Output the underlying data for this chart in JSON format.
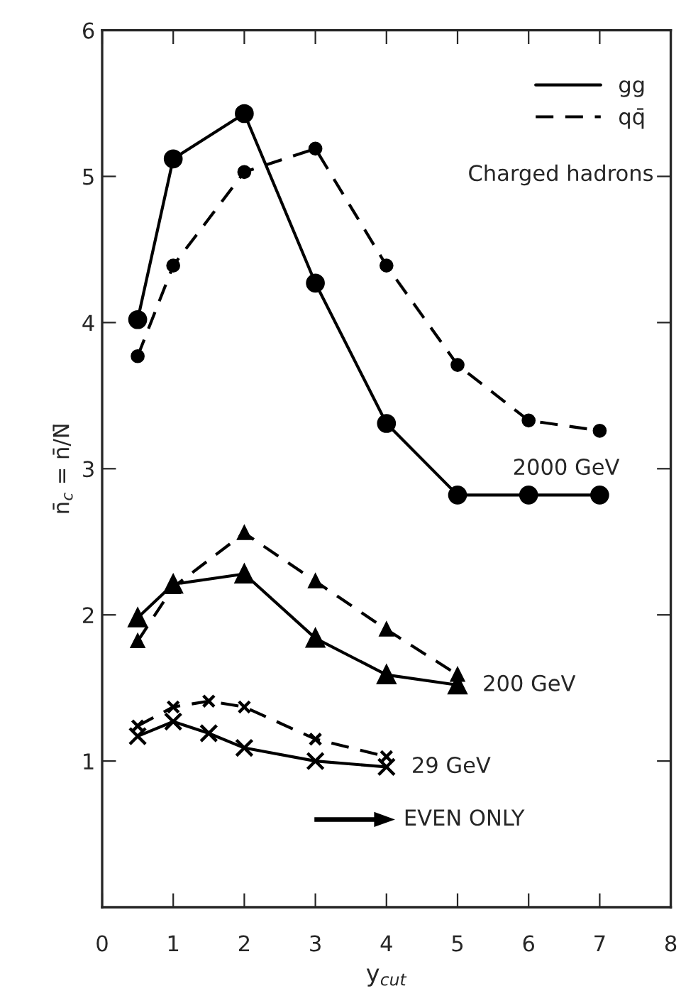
{
  "chart_data": {
    "type": "line",
    "xlabel": "y$_{cut}$",
    "ylabel": "n̄$_{c}$ = n̄/N̄",
    "xlim": [
      0,
      8
    ],
    "ylim": [
      0,
      6
    ],
    "xticks": [
      0,
      1,
      2,
      3,
      4,
      5,
      6,
      7,
      8
    ],
    "yticks": [
      1,
      2,
      3,
      4,
      5,
      6
    ],
    "legend": "top right",
    "grid": false,
    "series": [
      {
        "name": "gg",
        "color": "#000000",
        "line_style": "solid",
        "marker": "circle",
        "x": [
          0.5,
          1,
          2,
          3,
          4,
          5,
          6,
          7
        ],
        "values": [
          4.02,
          5.12,
          5.43,
          4.27,
          3.31,
          2.82,
          2.82,
          2.82
        ]
      },
      {
        "name": "qq̄",
        "color": "#000000",
        "line_style": "dashed",
        "marker": "circle",
        "x": [
          0.5,
          1,
          2,
          3,
          4,
          5,
          6,
          7
        ],
        "values": [
          3.77,
          4.39,
          5.03,
          5.19,
          4.39,
          3.71,
          3.33,
          3.26
        ]
      },
      {
        "color": "#000000",
        "line_style": "solid",
        "marker": "triangle",
        "x": [
          0.5,
          1,
          2,
          3,
          4,
          5
        ],
        "values": [
          1.98,
          2.21,
          2.28,
          1.84,
          1.59,
          1.52
        ]
      },
      {
        "color": "#000000",
        "line_style": "dashed",
        "marker": "triangle",
        "x": [
          0.5,
          1,
          2,
          3,
          4,
          5
        ],
        "values": [
          1.82,
          2.19,
          2.56,
          2.23,
          1.9,
          1.59
        ]
      },
      {
        "color": "#000000",
        "line_style": "solid",
        "marker": "cross",
        "x": [
          0.5,
          1,
          1.5,
          2,
          3,
          4
        ],
        "values": [
          1.17,
          1.27,
          1.19,
          1.09,
          1.0,
          0.96
        ]
      },
      {
        "color": "#000000",
        "line_style": "dashed",
        "marker": "cross",
        "x": [
          0.5,
          1,
          1.5,
          2,
          3,
          4
        ],
        "values": [
          1.24,
          1.37,
          1.41,
          1.37,
          1.15,
          1.03
        ]
      }
    ],
    "annotations": [
      "Charged hadrons",
      "2000 GeV",
      {
        "text": "200 GeV",
        "x": 5,
        "y": 1.52
      },
      {
        "text": "29 GeV",
        "x": 4,
        "y": 0.96
      },
      "EVEN ONLY"
    ]
  }
}
